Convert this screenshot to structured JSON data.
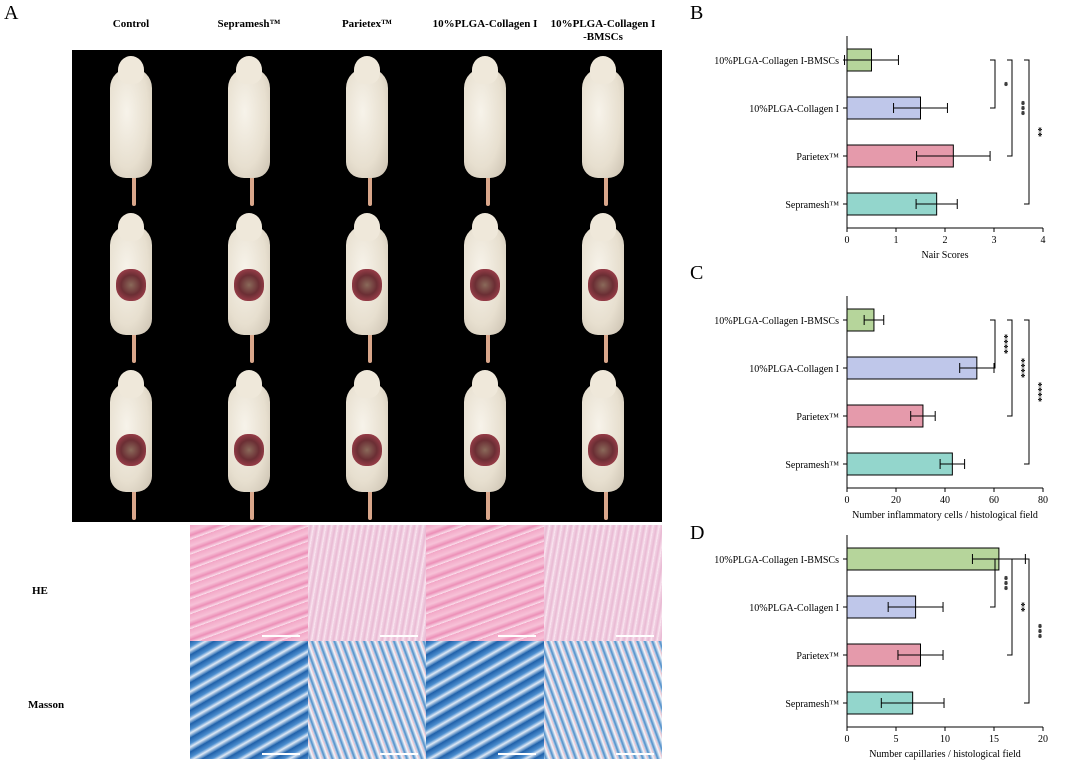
{
  "panels": {
    "a": "A",
    "b": "B",
    "c": "C",
    "d": "D"
  },
  "columns": [
    "Control",
    "Sepramesh™",
    "Parietex™",
    "10%PLGA-Collagen I",
    "10%PLGA-Collagen I\n-BMSCs"
  ],
  "histology_rows": [
    "HE",
    "Masson"
  ],
  "chart_data": [
    {
      "type": "bar",
      "panel": "B",
      "categories": [
        "10%PLGA-Collagen I-BMSCs",
        "10%PLGA-Collagen I",
        "Parietex™",
        "Sepramesh™"
      ],
      "values": [
        0.5,
        1.5,
        2.17,
        1.83
      ],
      "errors": [
        0.55,
        0.55,
        0.75,
        0.42
      ],
      "colors": [
        "#b6d59b",
        "#bfc7ea",
        "#e59aab",
        "#93d6cc"
      ],
      "xlabel": "Nair Scores",
      "xlim": [
        0,
        4
      ],
      "xticks": [
        0,
        1,
        2,
        3,
        4
      ],
      "significance": [
        {
          "from": 0,
          "to": 1,
          "label": "*",
          "level": 0
        },
        {
          "from": 0,
          "to": 2,
          "label": "***",
          "level": 1
        },
        {
          "from": 0,
          "to": 3,
          "label": "**",
          "level": 2
        }
      ]
    },
    {
      "type": "bar",
      "panel": "C",
      "categories": [
        "10%PLGA-Collagen I-BMSCs",
        "10%PLGA-Collagen I",
        "Parietex™",
        "Sepramesh™"
      ],
      "values": [
        11,
        53,
        31,
        43
      ],
      "errors": [
        4,
        7,
        5,
        5
      ],
      "colors": [
        "#b6d59b",
        "#bfc7ea",
        "#e59aab",
        "#93d6cc"
      ],
      "xlabel": "Number inflammatory cells / histological field",
      "xlim": [
        0,
        80
      ],
      "xticks": [
        0,
        20,
        40,
        60,
        80
      ],
      "significance": [
        {
          "from": 0,
          "to": 1,
          "label": "****",
          "level": 0
        },
        {
          "from": 0,
          "to": 2,
          "label": "****",
          "level": 1
        },
        {
          "from": 0,
          "to": 3,
          "label": "****",
          "level": 2
        }
      ]
    },
    {
      "type": "bar",
      "panel": "D",
      "categories": [
        "10%PLGA-Collagen I-BMSCs",
        "10%PLGA-Collagen I",
        "Parietex™",
        "Sepramesh™"
      ],
      "values": [
        15.5,
        7,
        7.5,
        6.7
      ],
      "errors": [
        2.7,
        2.8,
        2.3,
        3.2
      ],
      "colors": [
        "#b6d59b",
        "#bfc7ea",
        "#e59aab",
        "#93d6cc"
      ],
      "xlabel": "Number capillaries / histological field",
      "xlim": [
        0,
        20
      ],
      "xticks": [
        0,
        5,
        10,
        15,
        20
      ],
      "significance": [
        {
          "from": 0,
          "to": 1,
          "label": "***",
          "level": 0
        },
        {
          "from": 0,
          "to": 2,
          "label": "**",
          "level": 1
        },
        {
          "from": 0,
          "to": 3,
          "label": "***",
          "level": 2
        }
      ]
    }
  ]
}
